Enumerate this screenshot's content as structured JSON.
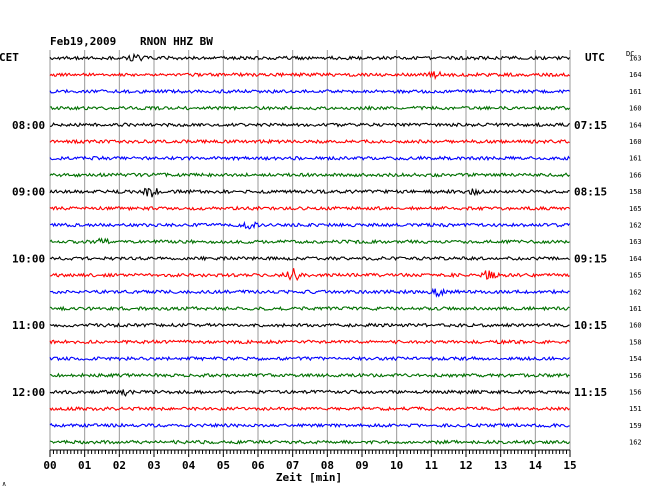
{
  "header": {
    "date": "Feb19,2009",
    "station": "RNON HHZ BW",
    "left_zone": "CET",
    "right_zone": "UTC",
    "dc_label": "DC"
  },
  "axis": {
    "xlabel": "Zeit [min]",
    "corner_mark": "∧"
  },
  "chart_data": {
    "type": "line",
    "title": "Feb19,2009   RNON HHZ BW",
    "xlabel": "Zeit [min]",
    "xlim": [
      0,
      15
    ],
    "x_ticks": [
      "00",
      "01",
      "02",
      "03",
      "04",
      "05",
      "06",
      "07",
      "08",
      "09",
      "10",
      "11",
      "12",
      "13",
      "14",
      "15"
    ],
    "trace_colors": [
      "#000000",
      "#ff0000",
      "#0000ff",
      "#007000"
    ],
    "grid": true,
    "left_time_labels": [
      {
        "row": 4,
        "text": "08:00"
      },
      {
        "row": 8,
        "text": "09:00"
      },
      {
        "row": 12,
        "text": "10:00"
      },
      {
        "row": 16,
        "text": "11:00"
      },
      {
        "row": 20,
        "text": "12:00"
      }
    ],
    "right_time_labels": [
      {
        "row": 4,
        "text": "07:15"
      },
      {
        "row": 8,
        "text": "08:15"
      },
      {
        "row": 12,
        "text": "09:15"
      },
      {
        "row": 16,
        "text": "10:15"
      },
      {
        "row": 20,
        "text": "11:15"
      }
    ],
    "dc_values": [
      "163",
      "164",
      "161",
      "160",
      "164",
      "160",
      "161",
      "166",
      "158",
      "165",
      "162",
      "163",
      "164",
      "165",
      "162",
      "161",
      "160",
      "158",
      "154",
      "156",
      "156",
      "151",
      "159",
      "162"
    ],
    "events": [
      {
        "row": 0,
        "minute": 2.5,
        "strength": 0.5
      },
      {
        "row": 1,
        "minute": 11.1,
        "strength": 0.5
      },
      {
        "row": 8,
        "minute": 2.9,
        "strength": 0.8
      },
      {
        "row": 8,
        "minute": 12.2,
        "strength": 0.3
      },
      {
        "row": 10,
        "minute": 5.8,
        "strength": 0.6
      },
      {
        "row": 11,
        "minute": 1.5,
        "strength": 0.3
      },
      {
        "row": 13,
        "minute": 7.0,
        "strength": 1.0
      },
      {
        "row": 13,
        "minute": 12.6,
        "strength": 0.9
      },
      {
        "row": 14,
        "minute": 11.2,
        "strength": 0.5
      },
      {
        "row": 20,
        "minute": 2.2,
        "strength": 0.4
      }
    ]
  }
}
